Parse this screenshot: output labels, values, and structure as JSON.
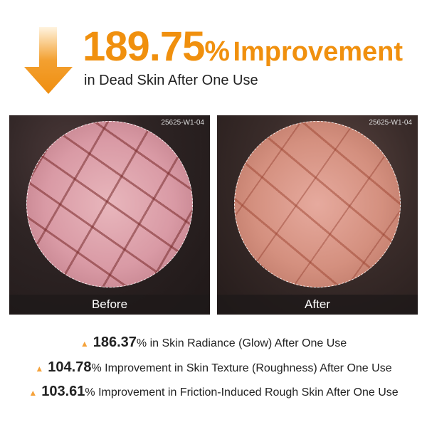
{
  "headline": {
    "value": "189.75",
    "percent": "%",
    "text": "Improvement",
    "subtitle": "in Dead Skin After One Use",
    "color": "#f0900e",
    "icon": "down-arrow-icon"
  },
  "panels": [
    {
      "label": "Before",
      "code": "25625-W1-04"
    },
    {
      "label": "After",
      "code": "25625-W1-04"
    }
  ],
  "stats": [
    {
      "icon": "up-triangle-icon",
      "value": "186.37",
      "percent": "%",
      "text": "in Skin Radiance (Glow) After One Use"
    },
    {
      "icon": "up-triangle-icon",
      "value": "104.78",
      "percent": "%",
      "text": "Improvement in Skin Texture (Roughness) After One Use"
    },
    {
      "icon": "up-triangle-icon",
      "value": "103.61",
      "percent": "%",
      "text": "Improvement in Friction-Induced Rough Skin After One Use"
    }
  ]
}
